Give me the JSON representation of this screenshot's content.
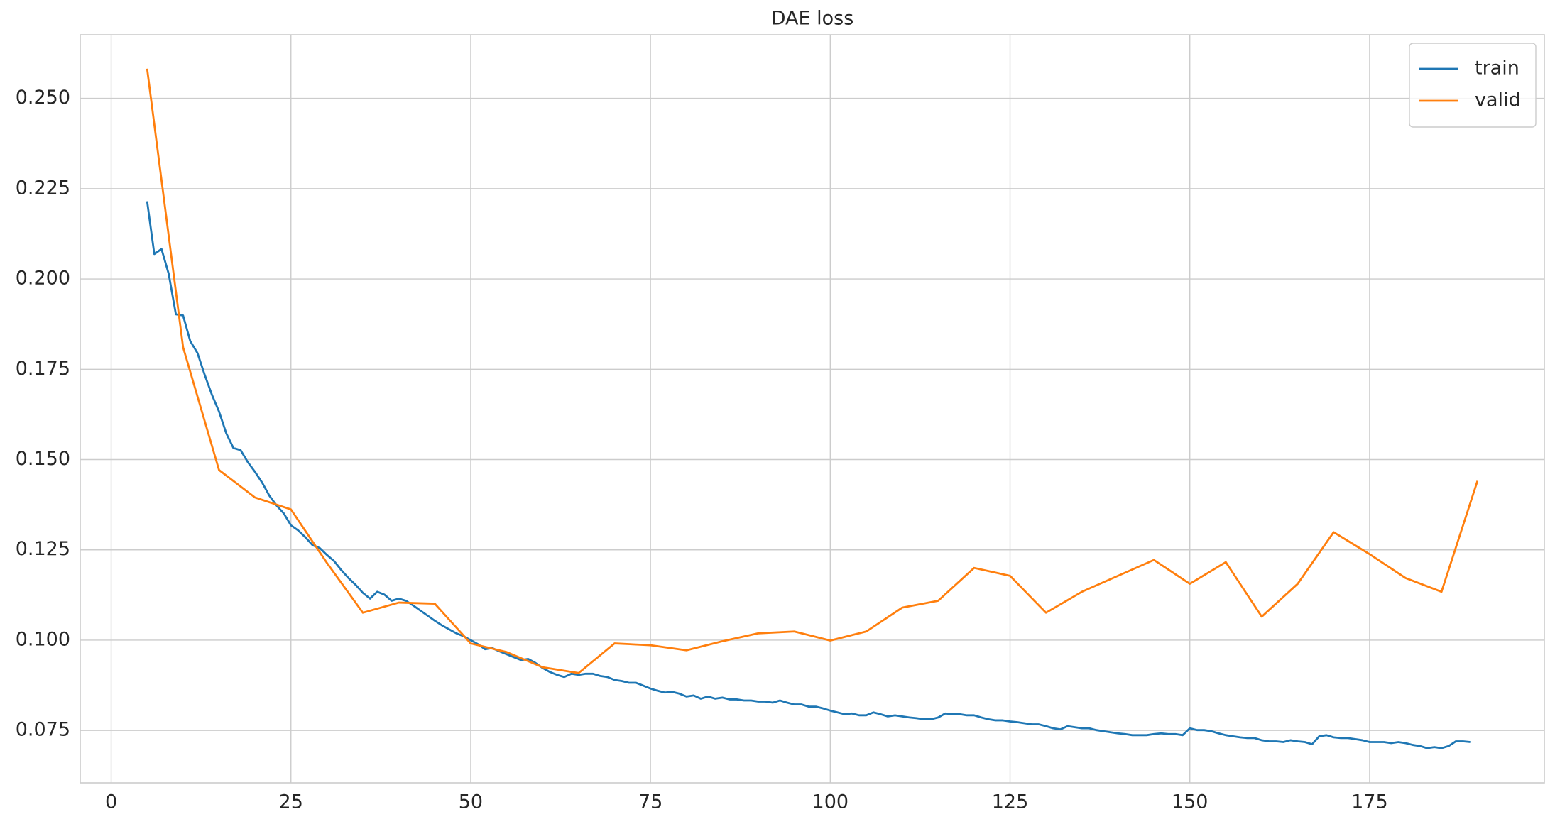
{
  "chart_data": {
    "type": "line",
    "title": "DAE loss",
    "xlim": [
      -4.3,
      199.3
    ],
    "ylim": [
      0.0605,
      0.2676
    ],
    "xticks": [
      0,
      25,
      50,
      75,
      100,
      125,
      150,
      175
    ],
    "yticks": [
      0.075,
      {
        "value": 0.1,
        "label": "0.100"
      },
      0.125,
      {
        "value": 0.15,
        "label": "0.150"
      },
      0.175,
      {
        "value": 0.2,
        "label": "0.200"
      },
      0.225,
      {
        "value": 0.25,
        "label": "0.250"
      }
    ],
    "grid": true,
    "legend": "upper right",
    "series": [
      {
        "name": "train",
        "color": "#1f77b4",
        "x": [
          5,
          6,
          7,
          8,
          9,
          10,
          11,
          12,
          13,
          14,
          15,
          16,
          17,
          18,
          19,
          20,
          21,
          22,
          23,
          24,
          25,
          26,
          27,
          28,
          29,
          30,
          31,
          32,
          33,
          34,
          35,
          36,
          37,
          38,
          39,
          40,
          41,
          42,
          43,
          44,
          45,
          46,
          47,
          48,
          49,
          50,
          51,
          52,
          53,
          54,
          55,
          56,
          57,
          58,
          59,
          60,
          61,
          62,
          63,
          64,
          65,
          66,
          67,
          68,
          69,
          70,
          71,
          72,
          73,
          74,
          75,
          76,
          77,
          78,
          79,
          80,
          81,
          82,
          83,
          84,
          85,
          86,
          87,
          88,
          89,
          90,
          91,
          92,
          93,
          94,
          95,
          96,
          97,
          98,
          99,
          100,
          101,
          102,
          103,
          104,
          105,
          106,
          107,
          108,
          109,
          110,
          111,
          112,
          113,
          114,
          115,
          116,
          117,
          118,
          119,
          120,
          121,
          122,
          123,
          124,
          125,
          126,
          127,
          128,
          129,
          130,
          131,
          132,
          133,
          134,
          135,
          136,
          137,
          138,
          139,
          140,
          141,
          142,
          143,
          144,
          145,
          146,
          147,
          148,
          149,
          150,
          151,
          152,
          153,
          154,
          155,
          156,
          157,
          158,
          159,
          160,
          161,
          162,
          163,
          164,
          165,
          166,
          167,
          168,
          169,
          170,
          171,
          172,
          173,
          174,
          175,
          176,
          177,
          178,
          179,
          180,
          181,
          182,
          183,
          184,
          185,
          186,
          187,
          188,
          189
        ],
        "values": [
          0.2215,
          0.2069,
          0.2083,
          0.2014,
          0.1902,
          0.1899,
          0.1828,
          0.1795,
          0.1735,
          0.168,
          0.1633,
          0.1573,
          0.1532,
          0.1526,
          0.1493,
          0.1466,
          0.1436,
          0.14,
          0.1373,
          0.1351,
          0.1318,
          0.1304,
          0.1285,
          0.1263,
          0.1255,
          0.1236,
          0.1219,
          0.1194,
          0.1172,
          0.1153,
          0.1131,
          0.1115,
          0.1134,
          0.1126,
          0.1109,
          0.1115,
          0.1109,
          0.1096,
          0.1082,
          0.1068,
          0.1054,
          0.1041,
          0.103,
          0.1019,
          0.1011,
          0.1,
          0.0989,
          0.0975,
          0.0978,
          0.0969,
          0.0961,
          0.0953,
          0.0945,
          0.0948,
          0.0937,
          0.0923,
          0.0912,
          0.0904,
          0.0898,
          0.0907,
          0.0904,
          0.0907,
          0.0907,
          0.0901,
          0.0898,
          0.089,
          0.0887,
          0.0882,
          0.0882,
          0.0874,
          0.0866,
          0.086,
          0.0855,
          0.0857,
          0.0852,
          0.0844,
          0.0847,
          0.0838,
          0.0844,
          0.0838,
          0.0841,
          0.0836,
          0.0836,
          0.0833,
          0.0833,
          0.083,
          0.083,
          0.0827,
          0.0833,
          0.0827,
          0.0822,
          0.0822,
          0.0816,
          0.0816,
          0.0811,
          0.0805,
          0.08,
          0.0795,
          0.0797,
          0.0792,
          0.0792,
          0.08,
          0.0795,
          0.0789,
          0.0792,
          0.0789,
          0.0786,
          0.0784,
          0.0781,
          0.0781,
          0.0786,
          0.0797,
          0.0795,
          0.0795,
          0.0792,
          0.0792,
          0.0786,
          0.0781,
          0.0778,
          0.0778,
          0.0775,
          0.0773,
          0.077,
          0.0767,
          0.0767,
          0.0762,
          0.0756,
          0.0753,
          0.0762,
          0.0759,
          0.0756,
          0.0756,
          0.0751,
          0.0748,
          0.0745,
          0.0742,
          0.074,
          0.0737,
          0.0737,
          0.0737,
          0.074,
          0.0742,
          0.074,
          0.074,
          0.0737,
          0.0756,
          0.0751,
          0.0751,
          0.0748,
          0.0742,
          0.0737,
          0.0734,
          0.0731,
          0.0729,
          0.0729,
          0.0723,
          0.072,
          0.072,
          0.0718,
          0.0723,
          0.072,
          0.0718,
          0.0712,
          0.0734,
          0.0737,
          0.0731,
          0.0729,
          0.0729,
          0.0726,
          0.0723,
          0.0718,
          0.0718,
          0.0718,
          0.0715,
          0.0718,
          0.0715,
          0.071,
          0.0707,
          0.0701,
          0.0704,
          0.0701,
          0.0707,
          0.072,
          0.072,
          0.0718
        ]
      },
      {
        "name": "valid",
        "color": "#ff7f0e",
        "x": [
          5,
          10,
          15,
          20,
          25,
          30,
          35,
          40,
          45,
          50,
          55,
          60,
          65,
          70,
          75,
          80,
          85,
          90,
          95,
          100,
          105,
          110,
          115,
          120,
          125,
          130,
          135,
          140,
          145,
          150,
          155,
          160,
          165,
          170,
          175,
          180,
          185,
          190
        ],
        "values": [
          0.2582,
          0.1811,
          0.1471,
          0.1395,
          0.1362,
          0.1214,
          0.1076,
          0.1104,
          0.1101,
          0.0991,
          0.0967,
          0.0925,
          0.0909,
          0.0991,
          0.0986,
          0.0972,
          0.0997,
          0.1019,
          0.1024,
          0.0999,
          0.1024,
          0.109,
          0.1109,
          0.12,
          0.1178,
          0.1076,
          0.1134,
          0.1178,
          0.1222,
          0.1156,
          0.1216,
          0.1065,
          0.1156,
          0.1299,
          0.1238,
          0.1172,
          0.1134,
          0.1441
        ]
      }
    ]
  }
}
